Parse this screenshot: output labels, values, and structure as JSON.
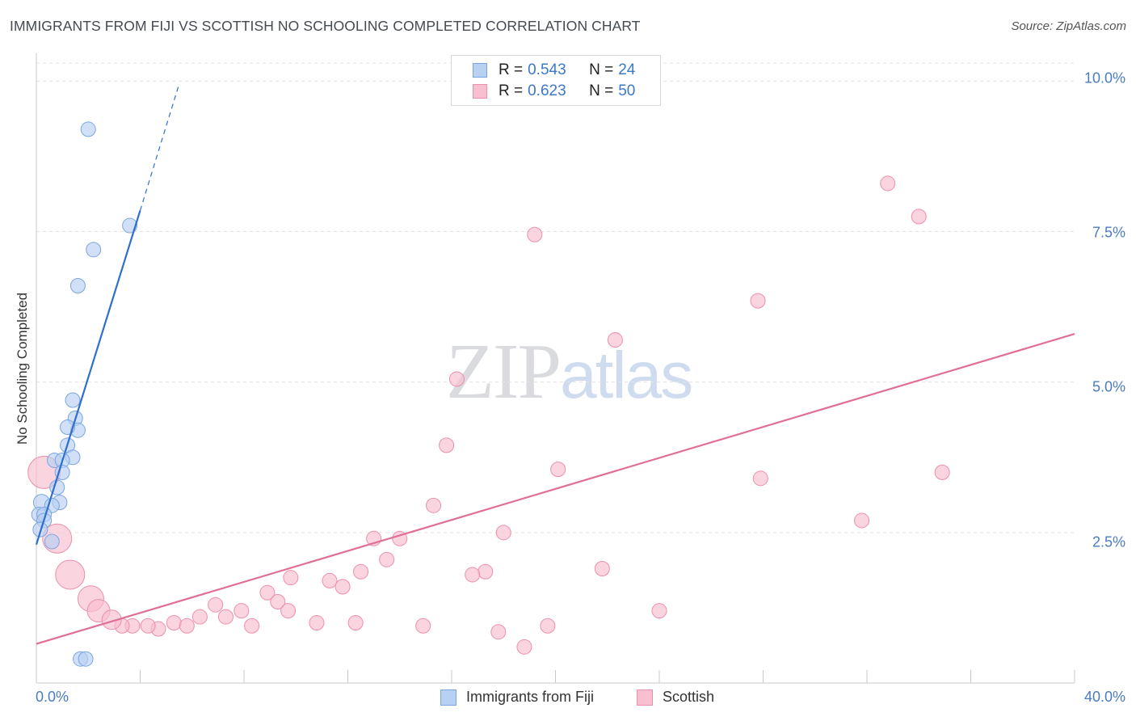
{
  "title": "IMMIGRANTS FROM FIJI VS SCOTTISH NO SCHOOLING COMPLETED CORRELATION CHART",
  "source": "Source: ZipAtlas.com",
  "watermark": {
    "zip": "ZIP",
    "atlas": "atlas"
  },
  "legend": {
    "fiji": {
      "r_label": "R = ",
      "r": "0.543",
      "n_label": "N = ",
      "n": "24"
    },
    "scottish": {
      "r_label": "R = ",
      "r": "0.623",
      "n_label": "N = ",
      "n": "50"
    }
  },
  "bottom_legend": {
    "fiji": "Immigrants from Fiji",
    "scottish": "Scottish"
  },
  "y_axis_title": "No Schooling Completed",
  "x_tick_labels": {
    "min": "0.0%",
    "max": "40.0%"
  },
  "y_tick_labels": [
    "10.0%",
    "7.5%",
    "5.0%",
    "2.5%"
  ],
  "colors": {
    "fiji_fill": "#b8d0f2",
    "fiji_stroke": "#7aa6e0",
    "fiji_line": "#2f6fcc",
    "scottish_fill": "#f8bfd0",
    "scottish_stroke": "#ec8fab",
    "scottish_line": "#e06f98",
    "grid": "#e4e4e4",
    "tick_label": "#4a7cc4"
  },
  "chart_data": {
    "type": "scatter",
    "title": "IMMIGRANTS FROM FIJI VS SCOTTISH NO SCHOOLING COMPLETED CORRELATION CHART",
    "xlabel": "",
    "ylabel": "No Schooling Completed",
    "xlim": [
      0,
      40
    ],
    "ylim": [
      0,
      10.3
    ],
    "x_unit": "%",
    "y_unit": "%",
    "y_ticks": [
      2.5,
      5.0,
      7.5,
      10.0
    ],
    "x_ticks": [
      0,
      40
    ],
    "grid": "horizontal dashed",
    "legend_position": "top-center",
    "series": [
      {
        "name": "Immigrants from Fiji",
        "R": 0.543,
        "N": 24,
        "points": [
          [
            2.0,
            9.2
          ],
          [
            3.6,
            7.6
          ],
          [
            2.2,
            7.2
          ],
          [
            1.6,
            6.6
          ],
          [
            1.4,
            4.7
          ],
          [
            1.5,
            4.4
          ],
          [
            1.6,
            4.2
          ],
          [
            1.2,
            4.25
          ],
          [
            1.2,
            3.95
          ],
          [
            1.4,
            3.75
          ],
          [
            0.7,
            3.7
          ],
          [
            1.0,
            3.7
          ],
          [
            1.0,
            3.5
          ],
          [
            0.8,
            3.25
          ],
          [
            0.2,
            3.0
          ],
          [
            0.9,
            3.0
          ],
          [
            0.6,
            2.95
          ],
          [
            0.1,
            2.8
          ],
          [
            0.3,
            2.8
          ],
          [
            0.3,
            2.7
          ],
          [
            0.15,
            2.55
          ],
          [
            0.6,
            2.35
          ],
          [
            1.7,
            0.4
          ],
          [
            1.9,
            0.4
          ]
        ],
        "sizes": [
          9,
          9,
          9,
          9,
          9,
          9,
          9,
          9,
          9,
          9,
          9,
          9,
          9,
          9,
          10,
          9,
          9,
          9,
          9,
          9,
          9,
          9,
          9,
          9
        ],
        "trend": {
          "x0": 0,
          "y0": 2.3,
          "x1": 4.0,
          "y1": 7.85,
          "dashed_to": [
            5.5,
            9.95
          ]
        }
      },
      {
        "name": "Scottish",
        "R": 0.623,
        "N": 50,
        "points": [
          [
            32.8,
            8.3
          ],
          [
            34.0,
            7.75
          ],
          [
            19.2,
            7.45
          ],
          [
            27.8,
            6.35
          ],
          [
            22.3,
            5.7
          ],
          [
            16.2,
            5.05
          ],
          [
            15.8,
            3.95
          ],
          [
            20.1,
            3.55
          ],
          [
            34.9,
            3.5
          ],
          [
            27.9,
            3.4
          ],
          [
            15.3,
            2.95
          ],
          [
            31.8,
            2.7
          ],
          [
            18.0,
            2.5
          ],
          [
            13.0,
            2.4
          ],
          [
            14.0,
            2.4
          ],
          [
            13.5,
            2.05
          ],
          [
            21.8,
            1.9
          ],
          [
            17.3,
            1.85
          ],
          [
            12.5,
            1.85
          ],
          [
            16.8,
            1.8
          ],
          [
            9.8,
            1.75
          ],
          [
            11.3,
            1.7
          ],
          [
            11.8,
            1.6
          ],
          [
            8.9,
            1.5
          ],
          [
            9.3,
            1.35
          ],
          [
            6.9,
            1.3
          ],
          [
            7.9,
            1.2
          ],
          [
            9.7,
            1.2
          ],
          [
            24.0,
            1.2
          ],
          [
            6.3,
            1.1
          ],
          [
            7.3,
            1.1
          ],
          [
            4.7,
            0.9
          ],
          [
            5.3,
            1.0
          ],
          [
            10.8,
            1.0
          ],
          [
            12.3,
            1.0
          ],
          [
            3.7,
            0.95
          ],
          [
            4.3,
            0.95
          ],
          [
            5.8,
            0.95
          ],
          [
            8.3,
            0.95
          ],
          [
            14.9,
            0.95
          ],
          [
            19.7,
            0.95
          ],
          [
            3.3,
            0.95
          ],
          [
            17.8,
            0.85
          ],
          [
            18.8,
            0.6
          ],
          [
            0.3,
            3.5
          ],
          [
            0.8,
            2.4
          ],
          [
            1.3,
            1.8
          ],
          [
            2.1,
            1.4
          ],
          [
            2.4,
            1.2
          ],
          [
            2.9,
            1.05
          ]
        ],
        "sizes": [
          9,
          9,
          9,
          9,
          9,
          9,
          9,
          9,
          9,
          9,
          9,
          9,
          9,
          9,
          9,
          9,
          9,
          9,
          9,
          9,
          9,
          9,
          9,
          9,
          9,
          9,
          9,
          9,
          9,
          9,
          9,
          9,
          9,
          9,
          9,
          9,
          9,
          9,
          9,
          9,
          9,
          9,
          9,
          9,
          20,
          18,
          18,
          16,
          14,
          12
        ],
        "trend": {
          "x0": 0,
          "y0": 0.65,
          "x1": 40,
          "y1": 5.8
        }
      }
    ]
  }
}
